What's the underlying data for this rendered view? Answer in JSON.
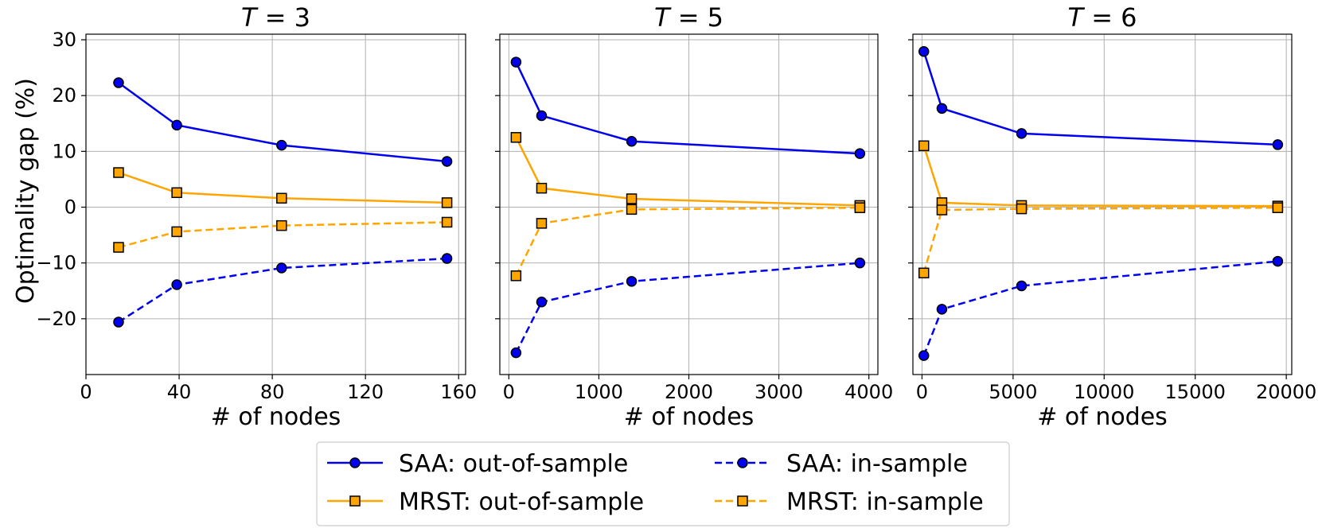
{
  "chart_data": {
    "type": "line",
    "ylabel": "Optimality gap (%)",
    "ylim": [
      -30,
      31
    ],
    "yticks": [
      30,
      20,
      10,
      0,
      -10,
      -20
    ],
    "ytick_labels": [
      "30",
      "20",
      "10",
      "0",
      "−10",
      "−20"
    ],
    "grid": true,
    "legend": {
      "placement": "bottom-center",
      "entries": [
        {
          "series": "saa_out",
          "label": "SAA: out-of-sample"
        },
        {
          "series": "saa_in",
          "label": "SAA: in-sample"
        },
        {
          "series": "mrst_out",
          "label": "MRST: out-of-sample"
        },
        {
          "series": "mrst_in",
          "label": "MRST: in-sample"
        }
      ]
    },
    "series_styles": {
      "saa_out": {
        "color": "#0000ee",
        "dash": "solid",
        "marker": "circle"
      },
      "saa_in": {
        "color": "#0000ee",
        "dash": "dashed",
        "marker": "circle"
      },
      "mrst_out": {
        "color": "#ffa500",
        "dash": "solid",
        "marker": "square"
      },
      "mrst_in": {
        "color": "#ffa500",
        "dash": "dashed",
        "marker": "square"
      }
    },
    "panels": [
      {
        "title_var": "T",
        "title_rest": " = 3",
        "xlabel": "# of nodes",
        "xlim": [
          0,
          163
        ],
        "xticks": [
          0,
          40,
          80,
          120,
          160
        ],
        "xtick_labels": [
          "0",
          "40",
          "80",
          "120",
          "160"
        ],
        "series": [
          {
            "id": "saa_out",
            "x": [
              14,
              39,
              84,
              155
            ],
            "y": [
              22.3,
              14.7,
              11.1,
              8.2
            ]
          },
          {
            "id": "mrst_out",
            "x": [
              14,
              39,
              84,
              155
            ],
            "y": [
              6.2,
              2.6,
              1.6,
              0.8
            ]
          },
          {
            "id": "mrst_in",
            "x": [
              14,
              39,
              84,
              155
            ],
            "y": [
              -7.2,
              -4.4,
              -3.3,
              -2.7
            ]
          },
          {
            "id": "saa_in",
            "x": [
              14,
              39,
              84,
              155
            ],
            "y": [
              -20.6,
              -13.9,
              -10.9,
              -9.2
            ]
          }
        ]
      },
      {
        "title_var": "T",
        "title_rest": " = 5",
        "xlabel": "# of nodes",
        "xlim": [
          -100,
          4100
        ],
        "xticks": [
          0,
          1000,
          2000,
          3000,
          4000
        ],
        "xtick_labels": [
          "0",
          "1000",
          "2000",
          "3000",
          "4000"
        ],
        "series": [
          {
            "id": "saa_out",
            "x": [
              80,
              364,
              1364,
              3900
            ],
            "y": [
              26.0,
              16.4,
              11.8,
              9.6
            ]
          },
          {
            "id": "mrst_out",
            "x": [
              80,
              364,
              1364,
              3900
            ],
            "y": [
              12.5,
              3.4,
              1.5,
              0.3
            ]
          },
          {
            "id": "mrst_in",
            "x": [
              80,
              364,
              1364,
              3900
            ],
            "y": [
              -12.3,
              -2.9,
              -0.4,
              -0.1
            ]
          },
          {
            "id": "saa_in",
            "x": [
              80,
              364,
              1364,
              3900
            ],
            "y": [
              -26.1,
              -17.0,
              -13.3,
              -10.0
            ]
          }
        ]
      },
      {
        "title_var": "T",
        "title_rest": " = 6",
        "xlabel": "# of nodes",
        "xlim": [
          -500,
          20300
        ],
        "xticks": [
          0,
          5000,
          10000,
          15000,
          20000
        ],
        "xtick_labels": [
          "0",
          "5000",
          "10000",
          "15000",
          "20000"
        ],
        "series": [
          {
            "id": "saa_out",
            "x": [
              100,
              1093,
              5465,
              19530
            ],
            "y": [
              27.9,
              17.7,
              13.2,
              11.2
            ]
          },
          {
            "id": "mrst_out",
            "x": [
              100,
              1093,
              5465,
              19530
            ],
            "y": [
              11.0,
              0.8,
              0.3,
              0.2
            ]
          },
          {
            "id": "mrst_in",
            "x": [
              100,
              1093,
              5465,
              19530
            ],
            "y": [
              -11.8,
              -0.5,
              -0.3,
              -0.1
            ]
          },
          {
            "id": "saa_in",
            "x": [
              100,
              1093,
              5465,
              19530
            ],
            "y": [
              -26.6,
              -18.3,
              -14.1,
              -9.7
            ]
          }
        ]
      }
    ]
  }
}
